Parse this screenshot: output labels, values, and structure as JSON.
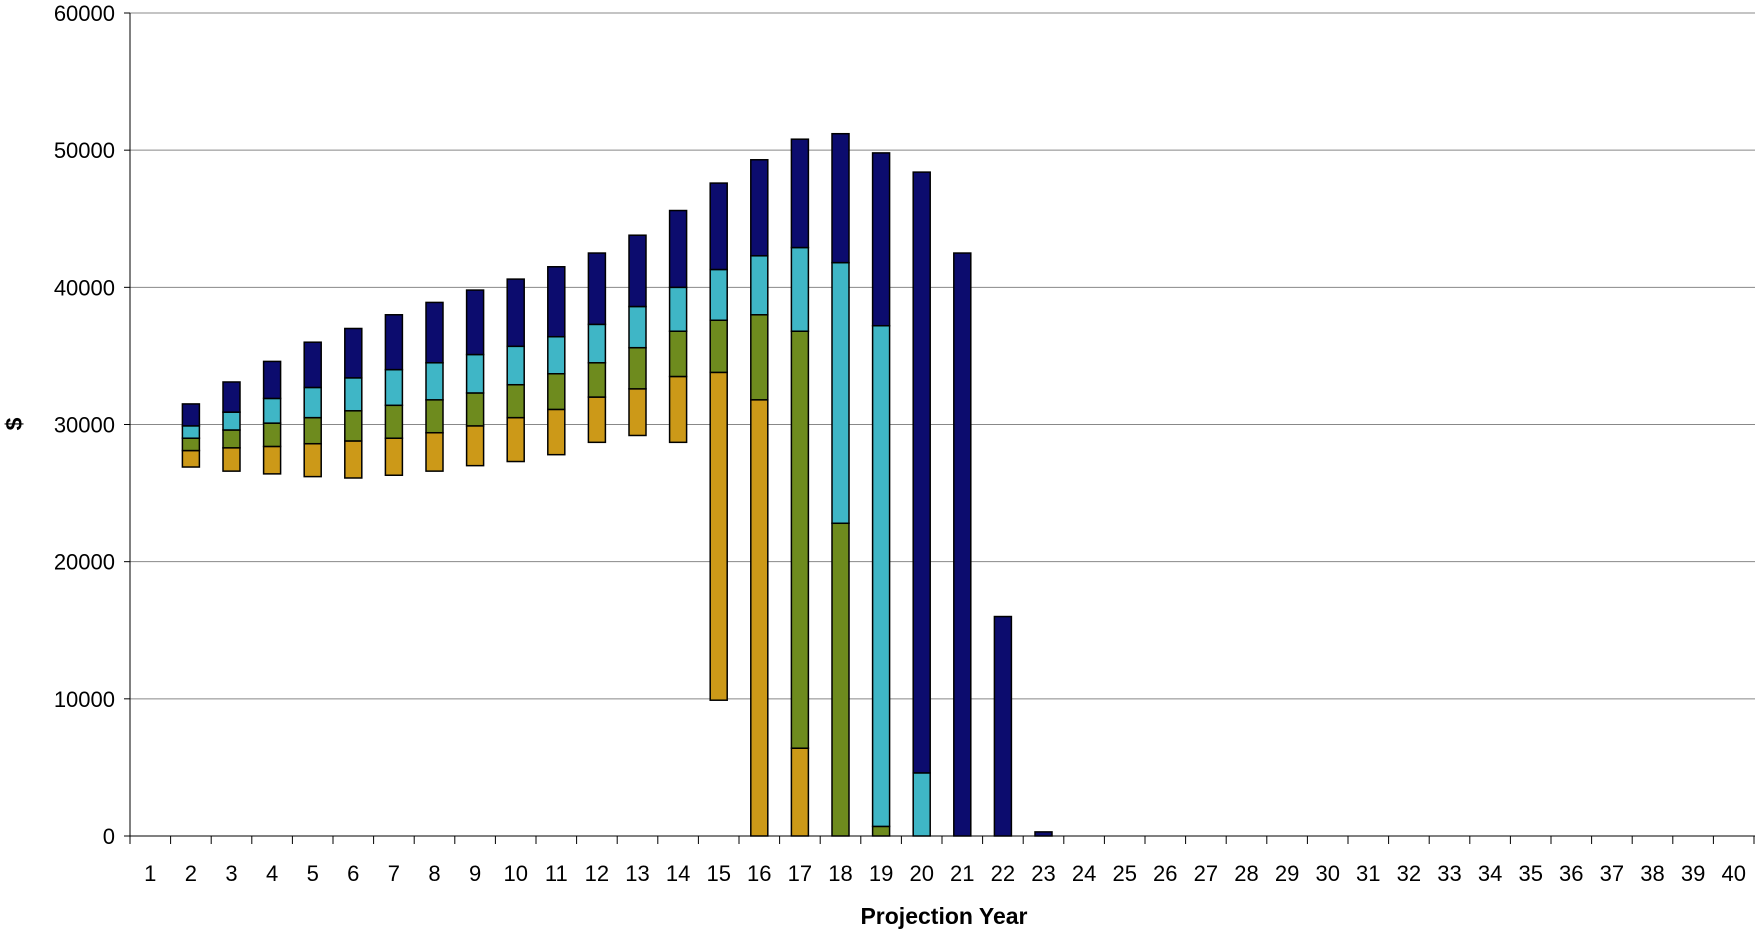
{
  "chart_data": {
    "type": "bar",
    "stacked": "floating",
    "xlabel": "Projection Year",
    "ylabel": "$",
    "ylim": [
      0,
      60000
    ],
    "y_ticks": [
      0,
      10000,
      20000,
      30000,
      40000,
      50000,
      60000
    ],
    "grid": "horizontal",
    "legend": "none",
    "categories": [
      "1",
      "2",
      "3",
      "4",
      "5",
      "6",
      "7",
      "8",
      "9",
      "10",
      "11",
      "12",
      "13",
      "14",
      "15",
      "16",
      "17",
      "18",
      "19",
      "20",
      "21",
      "22",
      "23",
      "24",
      "25",
      "26",
      "27",
      "28",
      "29",
      "30",
      "31",
      "32",
      "33",
      "34",
      "35",
      "36",
      "37",
      "38",
      "39",
      "40"
    ],
    "colors": {
      "segment1": "#CC9918",
      "segment2": "#6E8B1E",
      "segment3": "#3FB6C6",
      "segment4": "#0C0C6E",
      "grid": "#888888",
      "axis": "#000000"
    },
    "bars": [
      {
        "year": 1,
        "base": null,
        "tops": []
      },
      {
        "year": 2,
        "base": 26900,
        "tops": [
          28100,
          29000,
          29900,
          31500
        ]
      },
      {
        "year": 3,
        "base": 26600,
        "tops": [
          28300,
          29600,
          30900,
          33100
        ]
      },
      {
        "year": 4,
        "base": 26400,
        "tops": [
          28400,
          30100,
          31900,
          34600
        ]
      },
      {
        "year": 5,
        "base": 26200,
        "tops": [
          28600,
          30500,
          32700,
          36000
        ]
      },
      {
        "year": 6,
        "base": 26100,
        "tops": [
          28800,
          31000,
          33400,
          37000
        ]
      },
      {
        "year": 7,
        "base": 26300,
        "tops": [
          29000,
          31400,
          34000,
          38000
        ]
      },
      {
        "year": 8,
        "base": 26600,
        "tops": [
          29400,
          31800,
          34500,
          38900
        ]
      },
      {
        "year": 9,
        "base": 27000,
        "tops": [
          29900,
          32300,
          35100,
          39800
        ]
      },
      {
        "year": 10,
        "base": 27300,
        "tops": [
          30500,
          32900,
          35700,
          40600
        ]
      },
      {
        "year": 11,
        "base": 27800,
        "tops": [
          31100,
          33700,
          36400,
          41500
        ]
      },
      {
        "year": 12,
        "base": 28700,
        "tops": [
          32000,
          34500,
          37300,
          42500
        ]
      },
      {
        "year": 13,
        "base": 29200,
        "tops": [
          32600,
          35600,
          38600,
          43800
        ]
      },
      {
        "year": 14,
        "base": 28700,
        "tops": [
          33500,
          36800,
          40000,
          45600
        ]
      },
      {
        "year": 15,
        "base": 9900,
        "tops": [
          33800,
          37600,
          41300,
          47600
        ]
      },
      {
        "year": 16,
        "base": 0,
        "tops": [
          31800,
          38000,
          42300,
          49300
        ]
      },
      {
        "year": 17,
        "base": 0,
        "tops": [
          6400,
          36800,
          42900,
          50800
        ]
      },
      {
        "year": 18,
        "base": 0,
        "tops": [
          0,
          22800,
          41800,
          51200
        ]
      },
      {
        "year": 19,
        "base": 0,
        "tops": [
          0,
          700,
          37200,
          49800
        ]
      },
      {
        "year": 20,
        "base": 0,
        "tops": [
          0,
          0,
          4600,
          48400
        ]
      },
      {
        "year": 21,
        "base": 0,
        "tops": [
          0,
          0,
          0,
          42500
        ]
      },
      {
        "year": 22,
        "base": 0,
        "tops": [
          0,
          0,
          0,
          16000
        ]
      },
      {
        "year": 23,
        "base": 0,
        "tops": [
          0,
          0,
          0,
          300
        ]
      },
      {
        "year": 24,
        "base": null,
        "tops": []
      },
      {
        "year": 25,
        "base": null,
        "tops": []
      },
      {
        "year": 26,
        "base": null,
        "tops": []
      },
      {
        "year": 27,
        "base": null,
        "tops": []
      },
      {
        "year": 28,
        "base": null,
        "tops": []
      },
      {
        "year": 29,
        "base": null,
        "tops": []
      },
      {
        "year": 30,
        "base": null,
        "tops": []
      },
      {
        "year": 31,
        "base": null,
        "tops": []
      },
      {
        "year": 32,
        "base": null,
        "tops": []
      },
      {
        "year": 33,
        "base": null,
        "tops": []
      },
      {
        "year": 34,
        "base": null,
        "tops": []
      },
      {
        "year": 35,
        "base": null,
        "tops": []
      },
      {
        "year": 36,
        "base": null,
        "tops": []
      },
      {
        "year": 37,
        "base": null,
        "tops": []
      },
      {
        "year": 38,
        "base": null,
        "tops": []
      },
      {
        "year": 39,
        "base": null,
        "tops": []
      },
      {
        "year": 40,
        "base": null,
        "tops": []
      }
    ]
  }
}
